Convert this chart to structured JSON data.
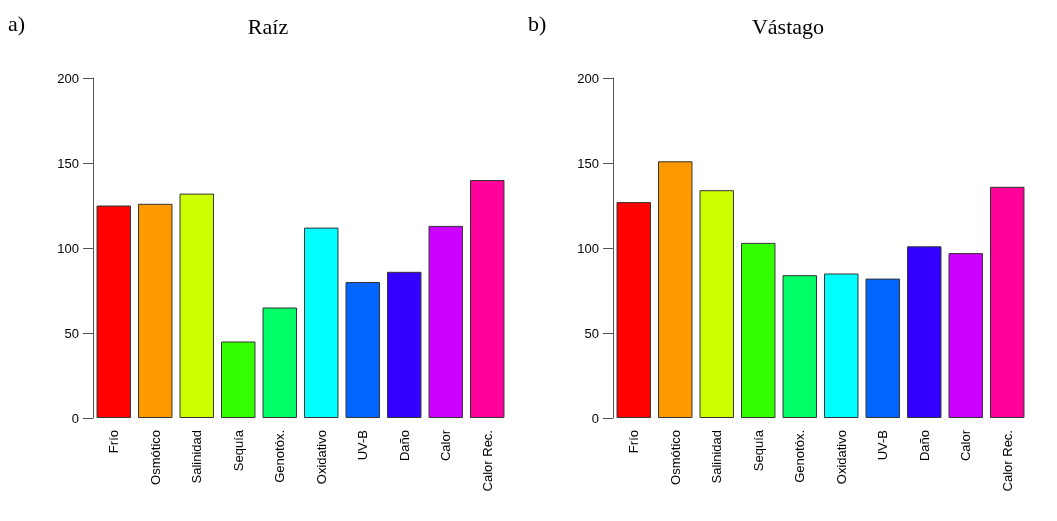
{
  "chart_data": [
    {
      "type": "bar",
      "title": "Raíz",
      "annotations": [
        "a)"
      ],
      "categories": [
        "Frío",
        "Osmótico",
        "Salinidad",
        "Sequía",
        "Genotóx.",
        "Oxidativo",
        "UV-B",
        "Daño",
        "Calor",
        "Calor Rec."
      ],
      "colors": [
        "#ff0000",
        "#ff9900",
        "#ccff00",
        "#33ff00",
        "#00ff66",
        "#00ffff",
        "#0066ff",
        "#3300ff",
        "#cc00ff",
        "#ff0099"
      ],
      "values": [
        125,
        126,
        132,
        45,
        65,
        112,
        80,
        86,
        113,
        140
      ],
      "ylim": [
        0,
        200
      ],
      "yticks": [
        0,
        50,
        100,
        150,
        200
      ]
    },
    {
      "type": "bar",
      "title": "Vástago",
      "annotations": [
        "b)"
      ],
      "categories": [
        "Frío",
        "Osmótico",
        "Salinidad",
        "Sequía",
        "Genotóx.",
        "Oxidativo",
        "UV-B",
        "Daño",
        "Calor",
        "Calor Rec."
      ],
      "colors": [
        "#ff0000",
        "#ff9900",
        "#ccff00",
        "#33ff00",
        "#00ff66",
        "#00ffff",
        "#0066ff",
        "#3300ff",
        "#cc00ff",
        "#ff0099"
      ],
      "values": [
        127,
        151,
        134,
        103,
        84,
        85,
        82,
        101,
        97,
        136
      ],
      "ylim": [
        0,
        200
      ],
      "yticks": [
        0,
        50,
        100,
        150,
        200
      ]
    }
  ]
}
